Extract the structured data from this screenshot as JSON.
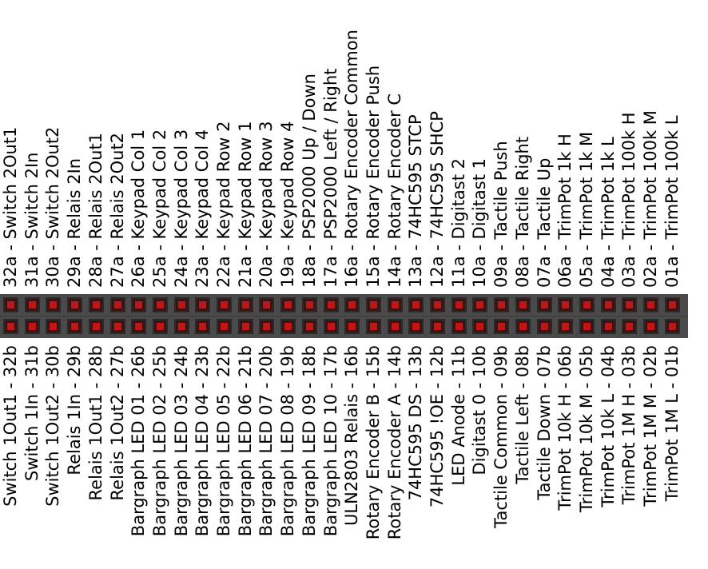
{
  "pins": [
    {
      "a": "32a - Switch 2Out1",
      "b": "Switch 1Out1 - 32b"
    },
    {
      "a": "31a - Switch 2In",
      "b": "Switch 1In - 31b"
    },
    {
      "a": "30a - Switch 2Out2",
      "b": "Switch 1Out2 - 30b"
    },
    {
      "a": "29a - Relais 2In",
      "b": "Relais 1In - 29b"
    },
    {
      "a": "28a - Relais 2Out1",
      "b": "Relais 1Out1 - 28b"
    },
    {
      "a": "27a - Relais 2Out2",
      "b": "Relais 1Out2 - 27b"
    },
    {
      "a": "26a - Keypad Col 1",
      "b": "Bargraph LED 01 - 26b"
    },
    {
      "a": "25a - Keypad Col 2",
      "b": "Bargraph LED 02 - 25b"
    },
    {
      "a": "24a - Keypad Col 3",
      "b": "Bargraph LED 03 - 24b"
    },
    {
      "a": "23a - Keypad Col 4",
      "b": "Bargraph LED 04 - 23b"
    },
    {
      "a": "22a - Keypad Row 2",
      "b": "Bargraph LED 05 - 22b"
    },
    {
      "a": "21a - Keypad Row 1",
      "b": "Bargraph LED 06 - 21b"
    },
    {
      "a": "20a - Keypad Row 3",
      "b": "Bargraph LED 07 - 20b"
    },
    {
      "a": "19a - Keypad Row 4",
      "b": "Bargraph LED 08 - 19b"
    },
    {
      "a": "18a - PSP2000 Up / Down",
      "b": "Bargraph LED 09 - 18b"
    },
    {
      "a": "17a - PSP2000 Left / Right",
      "b": "Bargraph LED 10 - 17b"
    },
    {
      "a": "16a - Rotary Encoder Common",
      "b": "ULN2803 Relais - 16b"
    },
    {
      "a": "15a - Rotary Encoder Push",
      "b": "Rotary Encoder B - 15b"
    },
    {
      "a": "14a - Rotary Encoder C",
      "b": "Rotary Encoder A - 14b"
    },
    {
      "a": "13a - 74HC595 STCP",
      "b": "74HC595 DS - 13b"
    },
    {
      "a": "12a - 74HC595 SHCP",
      "b": "74HC595 !OE - 12b"
    },
    {
      "a": "11a - Digitast 2",
      "b": "LED Anode - 11b"
    },
    {
      "a": "10a - Digitast 1",
      "b": "Digitast 0 - 10b"
    },
    {
      "a": "09a - Tactile Push",
      "b": "Tactile Common - 09b"
    },
    {
      "a": "08a - Tactile Right",
      "b": "Tactile Left - 08b"
    },
    {
      "a": "07a - Tactile Up",
      "b": "Tactile Down - 07b"
    },
    {
      "a": "06a - TrimPot 1k H",
      "b": "TrimPot 10k H - 06b"
    },
    {
      "a": "05a - TrimPot 1k M",
      "b": "TrimPot 10k M - 05b"
    },
    {
      "a": "04a - TrimPot 1k L",
      "b": "TrimPot 10k L - 04b"
    },
    {
      "a": "03a - TrimPot 100k H",
      "b": "TrimPot 1M H - 03b"
    },
    {
      "a": "02a - TrimPot 100k M",
      "b": "TrimPot 1M M - 02b"
    },
    {
      "a": "01a - TrimPot 100k L",
      "b": "TrimPot 1M L - 01b"
    }
  ],
  "colors": {
    "header": "#4a4a4a",
    "pin": "#c11616",
    "background": "#ffffff"
  }
}
